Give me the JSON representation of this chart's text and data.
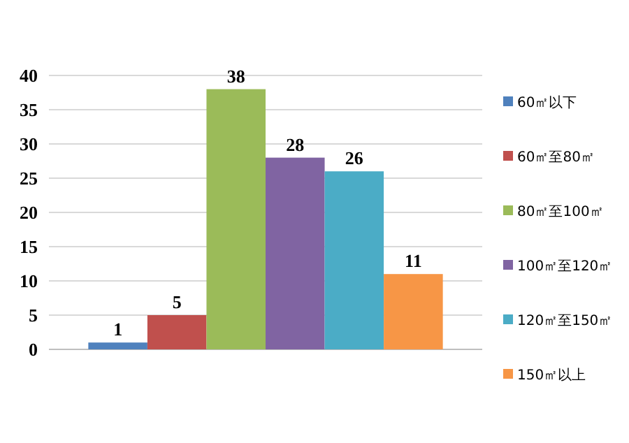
{
  "chart_data": {
    "type": "bar",
    "categories": [
      null
    ],
    "series": [
      {
        "name": "60㎡以下",
        "color": "#4f81bd",
        "values": [
          1
        ]
      },
      {
        "name": "60㎡至80㎡",
        "color": "#c0504d",
        "values": [
          5
        ]
      },
      {
        "name": "80㎡至100㎡",
        "color": "#9bbb59",
        "values": [
          38
        ]
      },
      {
        "name": "100㎡至120㎡",
        "color": "#8064a2",
        "values": [
          28
        ]
      },
      {
        "name": "120㎡至150㎡",
        "color": "#4bacc6",
        "values": [
          26
        ]
      },
      {
        "name": "150㎡以上",
        "color": "#f79646",
        "values": [
          11
        ]
      }
    ],
    "ylim": [
      0,
      40
    ],
    "yticks": [
      0,
      5,
      10,
      15,
      20,
      25,
      30,
      35,
      40
    ],
    "grid": "y",
    "legend": "right",
    "data_labels": true
  }
}
